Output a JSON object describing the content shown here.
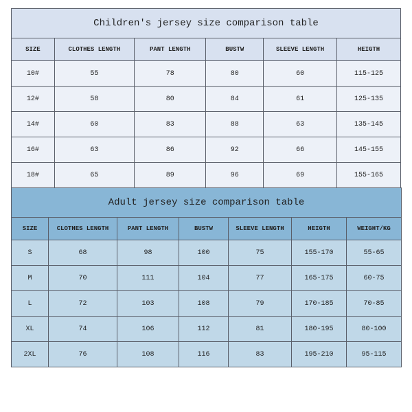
{
  "children_table": {
    "title": "Children's jersey size comparison table",
    "title_bg": "#d8e1f0",
    "header_bg": "#d8e1f0",
    "row_bg": "#edf1f8",
    "border_color": "#5a5f6a",
    "title_fontsize": 14,
    "header_fontsize": 9,
    "cell_fontsize": 10,
    "columns": [
      "SIZE",
      "CLOTHES LENGTH",
      "PANT LENGTH",
      "BUSTW",
      "SLEEVE LENGTH",
      "HEIGTH"
    ],
    "rows": [
      [
        "10#",
        "55",
        "78",
        "80",
        "60",
        "115-125"
      ],
      [
        "12#",
        "58",
        "80",
        "84",
        "61",
        "125-135"
      ],
      [
        "14#",
        "60",
        "83",
        "88",
        "63",
        "135-145"
      ],
      [
        "16#",
        "63",
        "86",
        "92",
        "66",
        "145-155"
      ],
      [
        "18#",
        "65",
        "89",
        "96",
        "69",
        "155-165"
      ]
    ]
  },
  "adult_table": {
    "title": "Adult jersey size comparison table",
    "title_bg": "#88b6d6",
    "header_bg": "#88b6d6",
    "row_bg": "#c0d8e8",
    "border_color": "#5a5f6a",
    "title_fontsize": 14,
    "header_fontsize": 9,
    "cell_fontsize": 10,
    "columns": [
      "SIZE",
      "CLOTHES LENGTH",
      "PANT LENGTH",
      "BUSTW",
      "SLEEVE LENGTH",
      "HEIGTH",
      "WEIGHT/KG"
    ],
    "rows": [
      [
        "S",
        "68",
        "98",
        "100",
        "75",
        "155-170",
        "55-65"
      ],
      [
        "M",
        "70",
        "111",
        "104",
        "77",
        "165-175",
        "60-75"
      ],
      [
        "L",
        "72",
        "103",
        "108",
        "79",
        "170-185",
        "70-85"
      ],
      [
        "XL",
        "74",
        "106",
        "112",
        "81",
        "180-195",
        "80-100"
      ],
      [
        "2XL",
        "76",
        "108",
        "116",
        "83",
        "195-210",
        "95-115"
      ]
    ]
  }
}
